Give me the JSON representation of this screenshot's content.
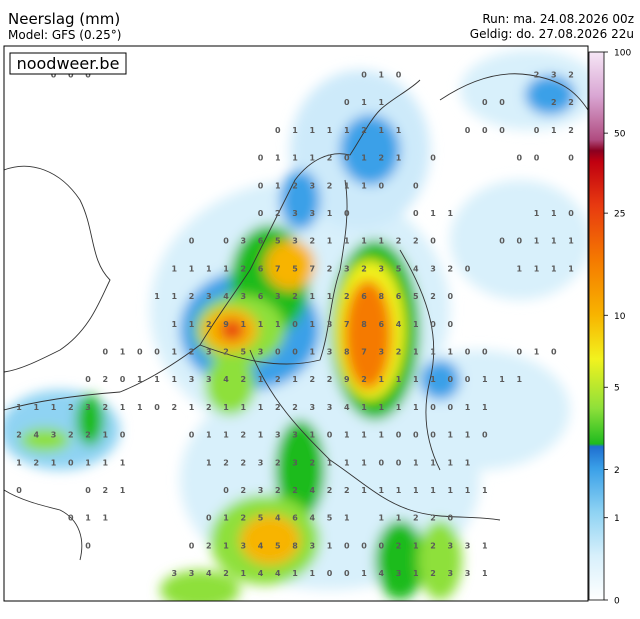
{
  "header": {
    "title": "Neerslag (mm)",
    "model": "Model: GFS (0.25°)",
    "run": "Run: ma. 24.08.2026 00z",
    "valid": "Geldig: do. 27.08.2026 22u"
  },
  "logo": "noodweer.be",
  "colorbar": {
    "ticks": [
      0,
      1,
      2,
      5,
      10,
      25,
      50,
      100
    ]
  },
  "map": {
    "grid": [
      [
        null,
        null,
        0,
        0,
        0,
        null,
        null,
        null,
        null,
        null,
        null,
        null,
        null,
        null,
        null,
        null,
        null,
        null,
        null,
        null,
        0,
        1,
        0,
        null,
        null,
        null,
        null,
        null,
        null,
        null,
        2,
        3,
        2
      ],
      [
        null,
        null,
        null,
        null,
        null,
        null,
        null,
        null,
        null,
        null,
        null,
        null,
        null,
        null,
        null,
        null,
        null,
        null,
        null,
        0,
        1,
        1,
        null,
        null,
        null,
        null,
        null,
        0,
        0,
        null,
        null,
        2,
        2
      ],
      [
        null,
        null,
        null,
        null,
        null,
        null,
        null,
        null,
        null,
        null,
        null,
        null,
        null,
        null,
        null,
        0,
        1,
        1,
        1,
        1,
        2,
        1,
        1,
        null,
        null,
        null,
        0,
        0,
        0,
        null,
        0,
        1,
        2
      ],
      [
        null,
        null,
        null,
        null,
        null,
        null,
        null,
        null,
        null,
        null,
        null,
        null,
        null,
        null,
        0,
        1,
        1,
        1,
        2,
        0,
        1,
        2,
        1,
        null,
        0,
        null,
        null,
        null,
        null,
        0,
        0,
        null,
        0
      ],
      [
        null,
        null,
        null,
        null,
        null,
        null,
        null,
        null,
        null,
        null,
        null,
        null,
        null,
        null,
        0,
        1,
        2,
        3,
        2,
        1,
        1,
        0,
        null,
        0,
        null,
        null,
        null,
        null,
        null,
        null,
        null,
        null,
        null
      ],
      [
        null,
        null,
        null,
        null,
        null,
        null,
        null,
        null,
        null,
        null,
        null,
        null,
        null,
        null,
        0,
        2,
        3,
        3,
        1,
        0,
        null,
        null,
        null,
        0,
        1,
        1,
        null,
        null,
        null,
        null,
        1,
        1,
        0
      ],
      [
        null,
        null,
        null,
        null,
        null,
        null,
        null,
        null,
        null,
        null,
        0,
        null,
        0,
        3,
        6,
        5,
        3,
        2,
        1,
        1,
        1,
        1,
        2,
        2,
        0,
        null,
        null,
        null,
        0,
        0,
        1,
        1,
        1
      ],
      [
        null,
        null,
        null,
        null,
        null,
        null,
        null,
        null,
        null,
        1,
        1,
        1,
        1,
        2,
        6,
        7,
        5,
        7,
        2,
        3,
        2,
        3,
        5,
        4,
        3,
        2,
        0,
        null,
        null,
        1,
        1,
        1,
        1
      ],
      [
        null,
        null,
        null,
        null,
        null,
        null,
        null,
        null,
        1,
        1,
        2,
        3,
        4,
        3,
        6,
        3,
        2,
        1,
        1,
        2,
        6,
        8,
        6,
        5,
        2,
        0,
        null,
        null,
        null,
        null,
        null,
        null,
        null
      ],
      [
        null,
        null,
        null,
        null,
        null,
        null,
        null,
        null,
        null,
        1,
        1,
        2,
        9,
        1,
        1,
        1,
        0,
        1,
        3,
        7,
        8,
        6,
        4,
        1,
        0,
        0,
        null,
        null,
        null,
        null,
        null,
        null,
        null
      ],
      [
        null,
        null,
        null,
        null,
        null,
        0,
        1,
        0,
        0,
        1,
        2,
        3,
        2,
        5,
        3,
        0,
        0,
        1,
        3,
        8,
        7,
        3,
        2,
        1,
        1,
        1,
        0,
        0,
        null,
        0,
        1,
        0,
        null
      ],
      [
        null,
        null,
        null,
        null,
        0,
        2,
        0,
        1,
        1,
        1,
        3,
        3,
        4,
        2,
        1,
        2,
        1,
        2,
        2,
        9,
        2,
        1,
        1,
        1,
        1,
        0,
        0,
        1,
        1,
        1,
        null,
        null,
        null
      ],
      [
        1,
        1,
        1,
        2,
        3,
        2,
        1,
        1,
        0,
        2,
        1,
        2,
        1,
        1,
        1,
        2,
        2,
        3,
        3,
        4,
        1,
        1,
        1,
        1,
        0,
        0,
        1,
        1,
        null,
        null,
        null,
        null,
        null
      ],
      [
        2,
        4,
        3,
        2,
        2,
        1,
        0,
        null,
        null,
        null,
        0,
        1,
        1,
        2,
        1,
        3,
        3,
        1,
        0,
        1,
        1,
        1,
        0,
        0,
        0,
        1,
        1,
        0,
        null,
        null,
        null,
        null,
        null
      ],
      [
        1,
        2,
        1,
        0,
        1,
        1,
        1,
        null,
        null,
        null,
        null,
        1,
        2,
        2,
        3,
        2,
        3,
        2,
        1,
        1,
        1,
        0,
        0,
        1,
        1,
        1,
        1,
        null,
        null,
        null,
        null,
        null,
        null
      ],
      [
        0,
        null,
        null,
        null,
        0,
        2,
        1,
        null,
        null,
        null,
        null,
        null,
        0,
        2,
        3,
        2,
        2,
        4,
        2,
        2,
        1,
        1,
        1,
        1,
        1,
        1,
        1,
        1,
        null,
        null,
        null,
        null,
        null
      ],
      [
        null,
        null,
        null,
        0,
        1,
        1,
        null,
        null,
        null,
        null,
        null,
        0,
        1,
        2,
        5,
        4,
        6,
        4,
        5,
        1,
        null,
        1,
        1,
        2,
        2,
        0,
        null,
        null,
        null,
        null,
        null,
        null,
        null
      ],
      [
        null,
        null,
        null,
        null,
        0,
        null,
        null,
        null,
        null,
        null,
        0,
        2,
        1,
        3,
        4,
        5,
        8,
        3,
        1,
        0,
        0,
        0,
        2,
        1,
        2,
        3,
        3,
        1,
        null,
        null,
        null,
        null,
        null
      ],
      [
        null,
        null,
        null,
        null,
        null,
        null,
        null,
        null,
        null,
        3,
        3,
        4,
        2,
        1,
        4,
        4,
        1,
        1,
        0,
        0,
        1,
        4,
        3,
        1,
        2,
        3,
        3,
        1,
        null,
        null,
        null,
        null,
        null
      ]
    ]
  }
}
